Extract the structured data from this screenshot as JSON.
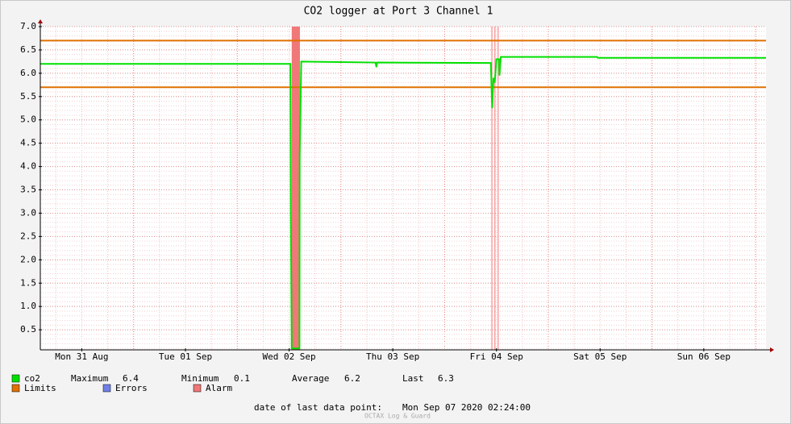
{
  "chart_data": {
    "type": "line",
    "title": "CO2 logger at Port 3 Channel 1",
    "x": [
      2.4,
      60.3,
      60.4,
      60.6,
      62.4,
      62.45,
      62.8,
      80.0,
      80.2,
      80.4,
      106.7,
      107.0,
      107.3,
      107.6,
      108.0,
      108.6,
      108.7,
      109.0,
      131.3,
      131.5,
      170.4
    ],
    "series": [
      {
        "name": "co2",
        "color": "#00e000",
        "values": [
          6.2,
          6.2,
          3.05,
          0.1,
          0.1,
          4.2,
          6.25,
          6.23,
          6.13,
          6.23,
          6.22,
          5.25,
          5.9,
          5.8,
          6.3,
          6.3,
          5.95,
          6.35,
          6.35,
          6.33,
          6.33
        ]
      }
    ],
    "limits": {
      "name": "Limits",
      "color": "#e07000",
      "values": [
        5.7,
        6.7
      ]
    },
    "errors": {
      "name": "Errors",
      "color": "#7080e8"
    },
    "alarm": {
      "name": "Alarm",
      "color": "#f07878",
      "periods": [
        [
          60.6,
          62.5
        ],
        [
          106.85,
          107.0
        ],
        [
          107.55,
          107.7
        ],
        [
          108.3,
          108.45
        ]
      ]
    },
    "stats": [
      {
        "label": "Maximum",
        "value": 6.4
      },
      {
        "label": "Minimum",
        "value": 0.1
      },
      {
        "label": "Average",
        "value": 6.2
      },
      {
        "label": "Last",
        "value": 6.3
      }
    ],
    "footer": {
      "label": "date of last data point:",
      "value": "Mon Sep 07 2020 02:24:00"
    },
    "watermark": "OCTAX Log & Guard",
    "xlim": [
      2.4,
      170.4
    ],
    "ylim": [
      0.07,
      7.0
    ],
    "xticks": [
      {
        "value": 12,
        "label": "Mon 31 Aug"
      },
      {
        "value": 36,
        "label": "Tue 01 Sep"
      },
      {
        "value": 60,
        "label": "Wed 02 Sep"
      },
      {
        "value": 84,
        "label": "Thu 03 Sep"
      },
      {
        "value": 108,
        "label": "Fri 04 Sep"
      },
      {
        "value": 132,
        "label": "Sat 05 Sep"
      },
      {
        "value": 156,
        "label": "Sun 06 Sep"
      }
    ],
    "yticks": [
      0.5,
      {
        "value": 1,
        "label": "1.0"
      },
      1.5,
      {
        "value": 2,
        "label": "2.0"
      },
      2.5,
      {
        "value": 3,
        "label": "3.0"
      },
      3.5,
      {
        "value": 4,
        "label": "4.0"
      },
      4.5,
      {
        "value": 5,
        "label": "5.0"
      },
      5.5,
      {
        "value": 6,
        "label": "6.0"
      },
      6.5,
      {
        "value": 7,
        "label": "7.0"
      }
    ],
    "grid": true
  }
}
